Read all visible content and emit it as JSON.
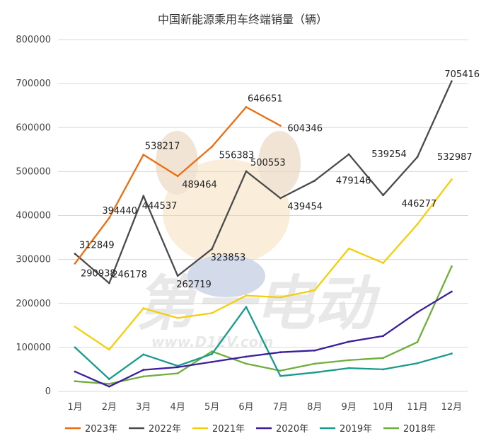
{
  "chart_data": {
    "type": "line",
    "title": "中国新能源乘用车终端销量（辆）",
    "xlabel": "",
    "ylabel": "",
    "categories": [
      "1月",
      "2月",
      "3月",
      "4月",
      "5月",
      "6月",
      "7月",
      "8月",
      "9月",
      "10月",
      "11月",
      "12月"
    ],
    "ylim": [
      0,
      800000
    ],
    "yticks": [
      0,
      100000,
      200000,
      300000,
      400000,
      500000,
      600000,
      700000,
      800000
    ],
    "grid": "horizontal",
    "legend": "bottom",
    "watermark": "第一电动 www.D1EV.com",
    "series": [
      {
        "name": "2023年",
        "color": "#ED6C0F",
        "values": [
          290938,
          394440,
          538217,
          489464,
          556383,
          646651,
          604346,
          null,
          null,
          null,
          null,
          null
        ],
        "labels": [
          "290938",
          "394440",
          "538217",
          "489464",
          "556383",
          "646651",
          "604346",
          null,
          null,
          null,
          null,
          null
        ]
      },
      {
        "name": "2022年",
        "color": "#4A4A4A",
        "values": [
          312849,
          246178,
          444537,
          262719,
          323853,
          500553,
          439454,
          479146,
          539254,
          446277,
          532987,
          705416
        ],
        "labels": [
          "312849",
          "246178",
          "444537",
          "262719",
          "323853",
          "500553",
          "439454",
          "479146",
          "539254",
          "446277",
          "532987",
          "705416"
        ]
      },
      {
        "name": "2021年",
        "color": "#F5CE0A",
        "values": [
          147000,
          95000,
          189000,
          167000,
          178000,
          218000,
          214000,
          230000,
          325000,
          292000,
          380000,
          482000
        ]
      },
      {
        "name": "2020年",
        "color": "#3A1E9C",
        "values": [
          45000,
          11000,
          49000,
          55000,
          67000,
          79000,
          89000,
          93000,
          113000,
          126000,
          180000,
          227000
        ]
      },
      {
        "name": "2019年",
        "color": "#1A9A8C",
        "values": [
          100000,
          28000,
          84000,
          58000,
          85000,
          192000,
          35000,
          43000,
          53000,
          50000,
          64000,
          86000
        ]
      },
      {
        "name": "2018年",
        "color": "#6FAE3A",
        "values": [
          23000,
          17000,
          34000,
          41000,
          91000,
          63000,
          47000,
          63000,
          71000,
          76000,
          112000,
          284000
        ]
      }
    ]
  }
}
